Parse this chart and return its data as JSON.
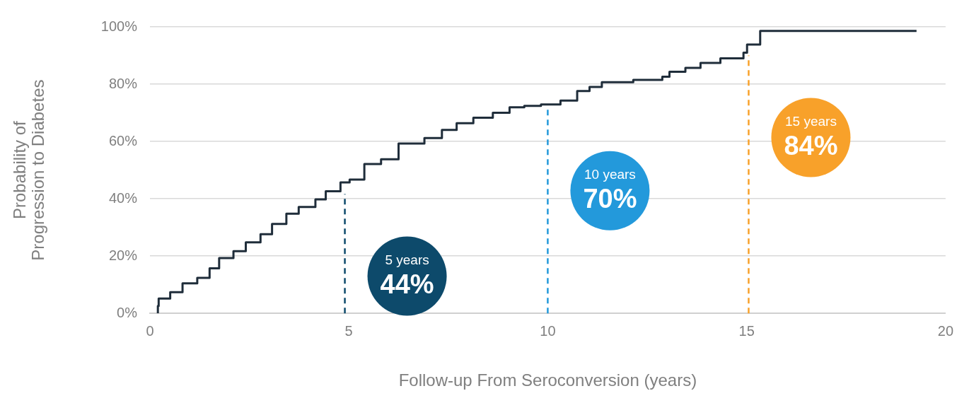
{
  "chart_data": {
    "type": "step",
    "xlabel": "Follow-up From Seroconversion (years)",
    "ylabel": "Probability of Progression to Diabetes",
    "x": [
      0.2,
      0.22,
      0.51,
      0.82,
      1.19,
      1.5,
      1.74,
      2.1,
      2.41,
      2.78,
      3.07,
      3.43,
      3.74,
      4.16,
      4.42,
      4.79,
      5.02,
      5.39,
      5.81,
      6.25,
      6.9,
      7.34,
      7.71,
      8.13,
      8.62,
      9.04,
      9.41,
      9.83,
      10.32,
      10.74,
      11.05,
      11.36,
      12.15,
      12.88,
      13.06,
      13.46,
      13.84,
      14.34,
      14.92,
      15.01,
      15.34,
      17.11,
      19.27
    ],
    "series": [
      {
        "color": "#1f2d3a",
        "values": [
          0,
          2.6,
          5.2,
          7.4,
          10.5,
          12.4,
          15.7,
          19.3,
          21.7,
          24.8,
          27.6,
          31.2,
          34.8,
          37.1,
          39.8,
          42.6,
          45.7,
          46.7,
          52.1,
          53.8,
          59.3,
          61.2,
          64,
          66.4,
          68.3,
          70,
          71.9,
          72.4,
          72.9,
          74.3,
          77.6,
          79,
          80.7,
          81.5,
          82.6,
          84.3,
          85.7,
          87.4,
          89,
          91,
          93.8,
          98.6,
          98.6
        ]
      }
    ],
    "xlim": [
      0,
      20
    ],
    "xticks": [
      0,
      5,
      10,
      15,
      20
    ],
    "ylim": [
      0,
      100
    ],
    "yticks": [
      {
        "value": 0,
        "label": "0%"
      },
      {
        "value": 20,
        "label": "20%"
      },
      {
        "value": 40,
        "label": "40%"
      },
      {
        "value": 60,
        "label": "60%"
      },
      {
        "value": 80,
        "label": "80%"
      },
      {
        "value": 100,
        "label": "100%"
      }
    ],
    "grid": "y",
    "legend": false,
    "marker": "none",
    "ref_lines": [
      {
        "axis": "x",
        "value": 4.9,
        "label": "5 years\n44%",
        "color": "#0d4a6b",
        "line_style": "dashed"
      },
      {
        "axis": "x",
        "value": 10,
        "label": "10 years\n70%",
        "color": "#2399db",
        "line_style": "dashed"
      },
      {
        "axis": "x",
        "value": 15.05,
        "label": "15 years\n84%",
        "color": "#f8a12a",
        "line_style": "dashed"
      }
    ]
  }
}
